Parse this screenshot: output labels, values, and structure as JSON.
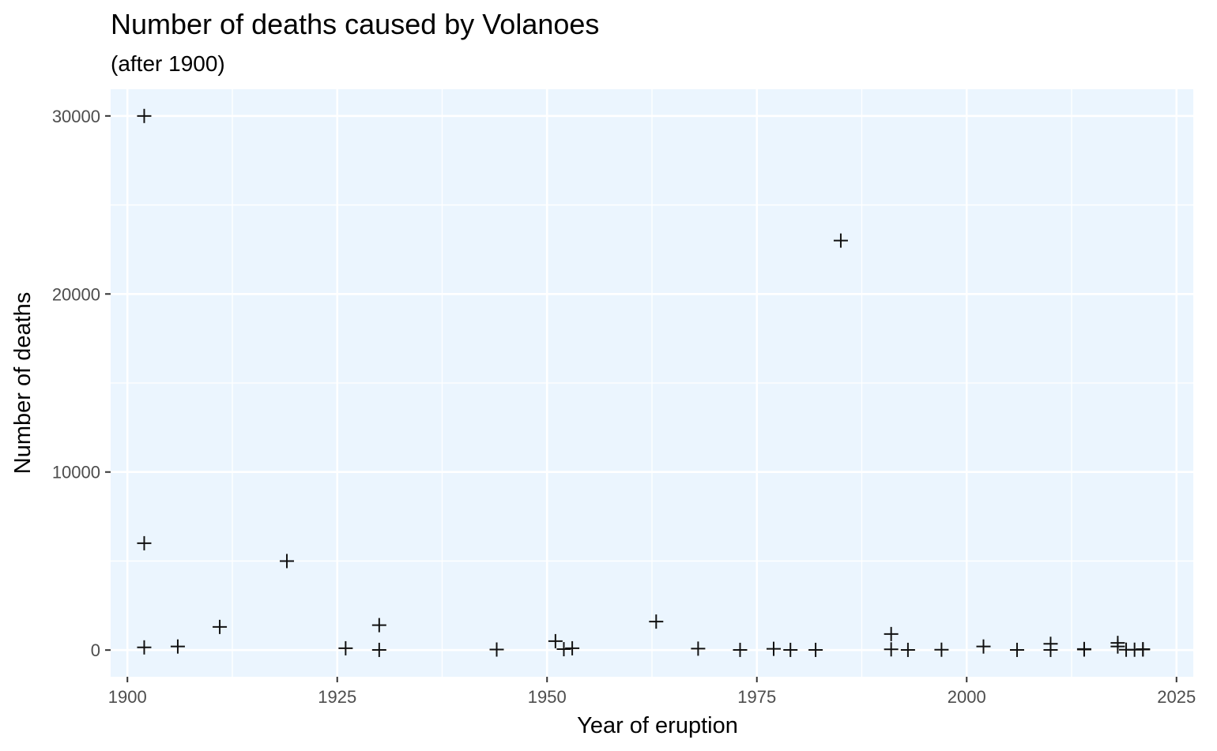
{
  "chart_data": {
    "type": "scatter",
    "title": "Number of deaths caused by Volanoes",
    "subtitle": "(after 1900)",
    "xlabel": "Year of eruption",
    "ylabel": "Number of deaths",
    "xlim": [
      1898,
      2027
    ],
    "ylim": [
      -1500,
      31500
    ],
    "x_ticks": [
      1900,
      1925,
      1950,
      1975,
      2000,
      2025
    ],
    "y_ticks": [
      0,
      10000,
      20000,
      30000
    ],
    "x_minor_ticks": [
      1912.5,
      1937.5,
      1962.5,
      1987.5,
      2012.5
    ],
    "y_minor_ticks": [
      5000,
      15000,
      25000
    ],
    "grid": true,
    "legend": "none",
    "marker": "plus",
    "colors": {
      "panel_background": "#ebf5fe",
      "grid": "#ffffff",
      "point": "#111111"
    },
    "points": [
      {
        "x": 1902,
        "y": 30000
      },
      {
        "x": 1902,
        "y": 6000
      },
      {
        "x": 1902,
        "y": 150
      },
      {
        "x": 1906,
        "y": 200
      },
      {
        "x": 1911,
        "y": 1300
      },
      {
        "x": 1919,
        "y": 5000
      },
      {
        "x": 1926,
        "y": 100
      },
      {
        "x": 1930,
        "y": 1400
      },
      {
        "x": 1930,
        "y": 10
      },
      {
        "x": 1944,
        "y": 30
      },
      {
        "x": 1951,
        "y": 500
      },
      {
        "x": 1952,
        "y": 50
      },
      {
        "x": 1953,
        "y": 100
      },
      {
        "x": 1963,
        "y": 1600
      },
      {
        "x": 1968,
        "y": 80
      },
      {
        "x": 1973,
        "y": 10
      },
      {
        "x": 1977,
        "y": 70
      },
      {
        "x": 1979,
        "y": 10
      },
      {
        "x": 1982,
        "y": 10
      },
      {
        "x": 1985,
        "y": 23000
      },
      {
        "x": 1991,
        "y": 900
      },
      {
        "x": 1991,
        "y": 40
      },
      {
        "x": 1993,
        "y": 10
      },
      {
        "x": 1997,
        "y": 20
      },
      {
        "x": 2002,
        "y": 200
      },
      {
        "x": 2006,
        "y": 10
      },
      {
        "x": 2010,
        "y": 350
      },
      {
        "x": 2010,
        "y": 10
      },
      {
        "x": 2014,
        "y": 60
      },
      {
        "x": 2014,
        "y": 30
      },
      {
        "x": 2018,
        "y": 400
      },
      {
        "x": 2018,
        "y": 200
      },
      {
        "x": 2019,
        "y": 20
      },
      {
        "x": 2020,
        "y": 20
      },
      {
        "x": 2021,
        "y": 30
      },
      {
        "x": 2021,
        "y": 50
      }
    ]
  }
}
